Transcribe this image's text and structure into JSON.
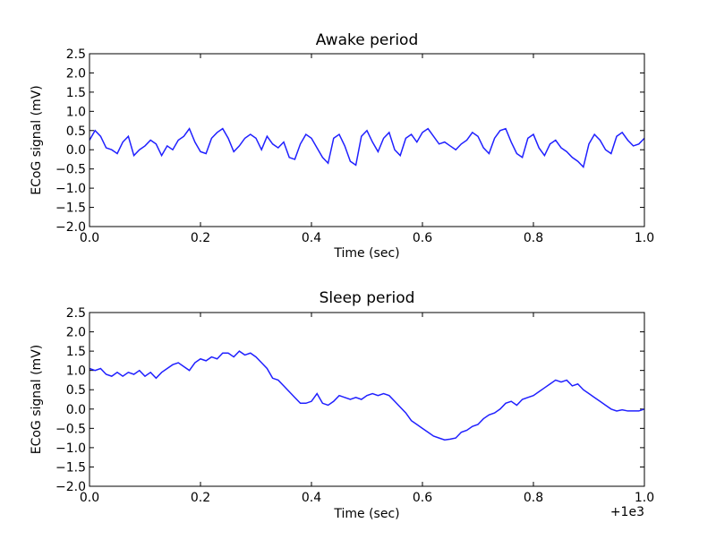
{
  "chart_data": [
    {
      "type": "line",
      "title": "Awake period",
      "xlabel": "Time (sec)",
      "ylabel": "ECoG signal (mV)",
      "xlim": [
        0.0,
        1.0
      ],
      "ylim": [
        -2.0,
        2.5
      ],
      "x_ticks": [
        "0.0",
        "0.2",
        "0.4",
        "0.6",
        "0.8",
        "1.0"
      ],
      "y_ticks": [
        "2.5",
        "2.0",
        "1.5",
        "1.0",
        "0.5",
        "0.0",
        "−0.5",
        "−1.0",
        "−1.5",
        "−2.0"
      ],
      "offset_text": "",
      "grid": false,
      "color": "#2020ff",
      "x": [
        0.0,
        0.01,
        0.02,
        0.03,
        0.04,
        0.05,
        0.06,
        0.07,
        0.08,
        0.09,
        0.1,
        0.11,
        0.12,
        0.13,
        0.14,
        0.15,
        0.16,
        0.17,
        0.18,
        0.19,
        0.2,
        0.21,
        0.22,
        0.23,
        0.24,
        0.25,
        0.26,
        0.27,
        0.28,
        0.29,
        0.3,
        0.31,
        0.32,
        0.33,
        0.34,
        0.35,
        0.36,
        0.37,
        0.38,
        0.39,
        0.4,
        0.41,
        0.42,
        0.43,
        0.44,
        0.45,
        0.46,
        0.47,
        0.48,
        0.49,
        0.5,
        0.51,
        0.52,
        0.53,
        0.54,
        0.55,
        0.56,
        0.57,
        0.58,
        0.59,
        0.6,
        0.61,
        0.62,
        0.63,
        0.64,
        0.65,
        0.66,
        0.67,
        0.68,
        0.69,
        0.7,
        0.71,
        0.72,
        0.73,
        0.74,
        0.75,
        0.76,
        0.77,
        0.78,
        0.79,
        0.8,
        0.81,
        0.82,
        0.83,
        0.84,
        0.85,
        0.86,
        0.87,
        0.88,
        0.89,
        0.9,
        0.91,
        0.92,
        0.93,
        0.94,
        0.95,
        0.96,
        0.97,
        0.98,
        0.99,
        1.0
      ],
      "values": [
        0.25,
        0.5,
        0.35,
        0.05,
        0.0,
        -0.1,
        0.2,
        0.35,
        -0.15,
        0.0,
        0.1,
        0.25,
        0.15,
        -0.15,
        0.1,
        0.0,
        0.25,
        0.35,
        0.55,
        0.2,
        -0.05,
        -0.1,
        0.3,
        0.45,
        0.55,
        0.3,
        -0.05,
        0.1,
        0.3,
        0.4,
        0.3,
        0.0,
        0.35,
        0.15,
        0.05,
        0.2,
        -0.2,
        -0.25,
        0.15,
        0.4,
        0.3,
        0.05,
        -0.2,
        -0.35,
        0.3,
        0.4,
        0.1,
        -0.3,
        -0.4,
        0.35,
        0.5,
        0.2,
        -0.05,
        0.3,
        0.45,
        0.0,
        -0.15,
        0.3,
        0.4,
        0.2,
        0.45,
        0.55,
        0.35,
        0.15,
        0.2,
        0.1,
        0.0,
        0.15,
        0.25,
        0.45,
        0.35,
        0.05,
        -0.1,
        0.3,
        0.5,
        0.55,
        0.2,
        -0.1,
        -0.2,
        0.3,
        0.4,
        0.05,
        -0.15,
        0.15,
        0.25,
        0.05,
        -0.05,
        -0.2,
        -0.3,
        -0.45,
        0.15,
        0.4,
        0.25,
        0.0,
        -0.1,
        0.35,
        0.45,
        0.25,
        0.1,
        0.15,
        0.3
      ]
    },
    {
      "type": "line",
      "title": "Sleep period",
      "xlabel": "Time (sec)",
      "ylabel": "ECoG signal (mV)",
      "xlim": [
        0.0,
        1.0
      ],
      "ylim": [
        -2.0,
        2.5
      ],
      "x_ticks": [
        "0.0",
        "0.2",
        "0.4",
        "0.6",
        "0.8",
        "1.0"
      ],
      "y_ticks": [
        "2.5",
        "2.0",
        "1.5",
        "1.0",
        "0.5",
        "0.0",
        "−0.5",
        "−1.0",
        "−1.5",
        "−2.0"
      ],
      "offset_text": "+1e3",
      "grid": false,
      "color": "#2020ff",
      "x": [
        0.0,
        0.01,
        0.02,
        0.03,
        0.04,
        0.05,
        0.06,
        0.07,
        0.08,
        0.09,
        0.1,
        0.11,
        0.12,
        0.13,
        0.14,
        0.15,
        0.16,
        0.17,
        0.18,
        0.19,
        0.2,
        0.21,
        0.22,
        0.23,
        0.24,
        0.25,
        0.26,
        0.27,
        0.28,
        0.29,
        0.3,
        0.31,
        0.32,
        0.33,
        0.34,
        0.35,
        0.36,
        0.37,
        0.38,
        0.39,
        0.4,
        0.41,
        0.42,
        0.43,
        0.44,
        0.45,
        0.46,
        0.47,
        0.48,
        0.49,
        0.5,
        0.51,
        0.52,
        0.53,
        0.54,
        0.55,
        0.56,
        0.57,
        0.58,
        0.59,
        0.6,
        0.61,
        0.62,
        0.63,
        0.64,
        0.65,
        0.66,
        0.67,
        0.68,
        0.69,
        0.7,
        0.71,
        0.72,
        0.73,
        0.74,
        0.75,
        0.76,
        0.77,
        0.78,
        0.79,
        0.8,
        0.81,
        0.82,
        0.83,
        0.84,
        0.85,
        0.86,
        0.87,
        0.88,
        0.89,
        0.9,
        0.91,
        0.92,
        0.93,
        0.94,
        0.95,
        0.96,
        0.97,
        0.98,
        0.99,
        1.0
      ],
      "values": [
        1.05,
        1.0,
        1.05,
        0.9,
        0.85,
        0.95,
        0.85,
        0.95,
        0.9,
        1.0,
        0.85,
        0.95,
        0.8,
        0.95,
        1.05,
        1.15,
        1.2,
        1.1,
        1.0,
        1.2,
        1.3,
        1.25,
        1.35,
        1.3,
        1.45,
        1.45,
        1.35,
        1.5,
        1.4,
        1.45,
        1.35,
        1.2,
        1.05,
        0.8,
        0.75,
        0.6,
        0.45,
        0.3,
        0.15,
        0.15,
        0.2,
        0.4,
        0.15,
        0.1,
        0.2,
        0.35,
        0.3,
        0.25,
        0.3,
        0.25,
        0.35,
        0.4,
        0.35,
        0.4,
        0.35,
        0.2,
        0.05,
        -0.1,
        -0.3,
        -0.4,
        -0.5,
        -0.6,
        -0.7,
        -0.75,
        -0.8,
        -0.78,
        -0.75,
        -0.6,
        -0.55,
        -0.45,
        -0.4,
        -0.25,
        -0.15,
        -0.1,
        0.0,
        0.15,
        0.2,
        0.1,
        0.25,
        0.3,
        0.35,
        0.45,
        0.55,
        0.65,
        0.75,
        0.7,
        0.75,
        0.6,
        0.65,
        0.5,
        0.4,
        0.3,
        0.2,
        0.1,
        0.0,
        -0.05,
        -0.02,
        -0.05,
        -0.05,
        -0.05,
        0.0
      ]
    }
  ]
}
